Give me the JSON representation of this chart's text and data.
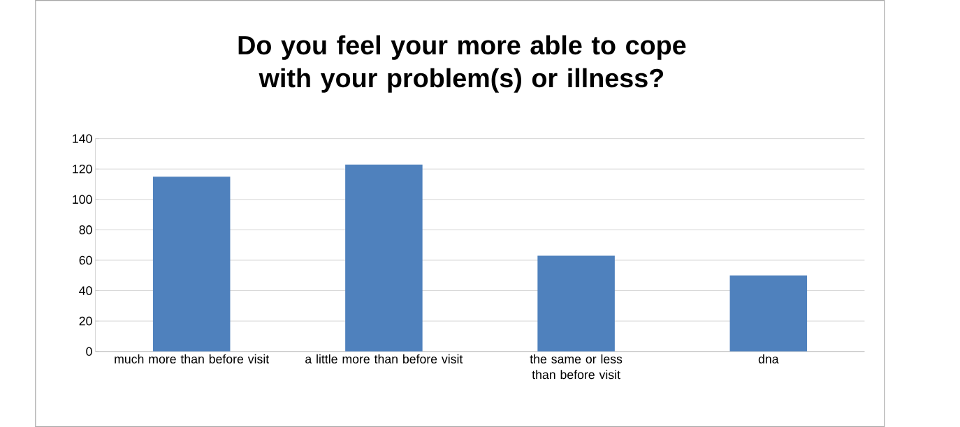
{
  "chart_data": {
    "type": "bar",
    "title": "Do you feel your more able to cope with your problem(s) or illness?",
    "categories": [
      "much more than before visit",
      "a little more than before visit",
      "the same or less than before visit",
      "dna"
    ],
    "values": [
      115,
      123,
      63,
      50
    ],
    "color": "#4f81bd",
    "ylim": [
      0,
      140
    ],
    "yticks": [
      0,
      20,
      40,
      60,
      80,
      100,
      120,
      140
    ],
    "grid": "y"
  }
}
